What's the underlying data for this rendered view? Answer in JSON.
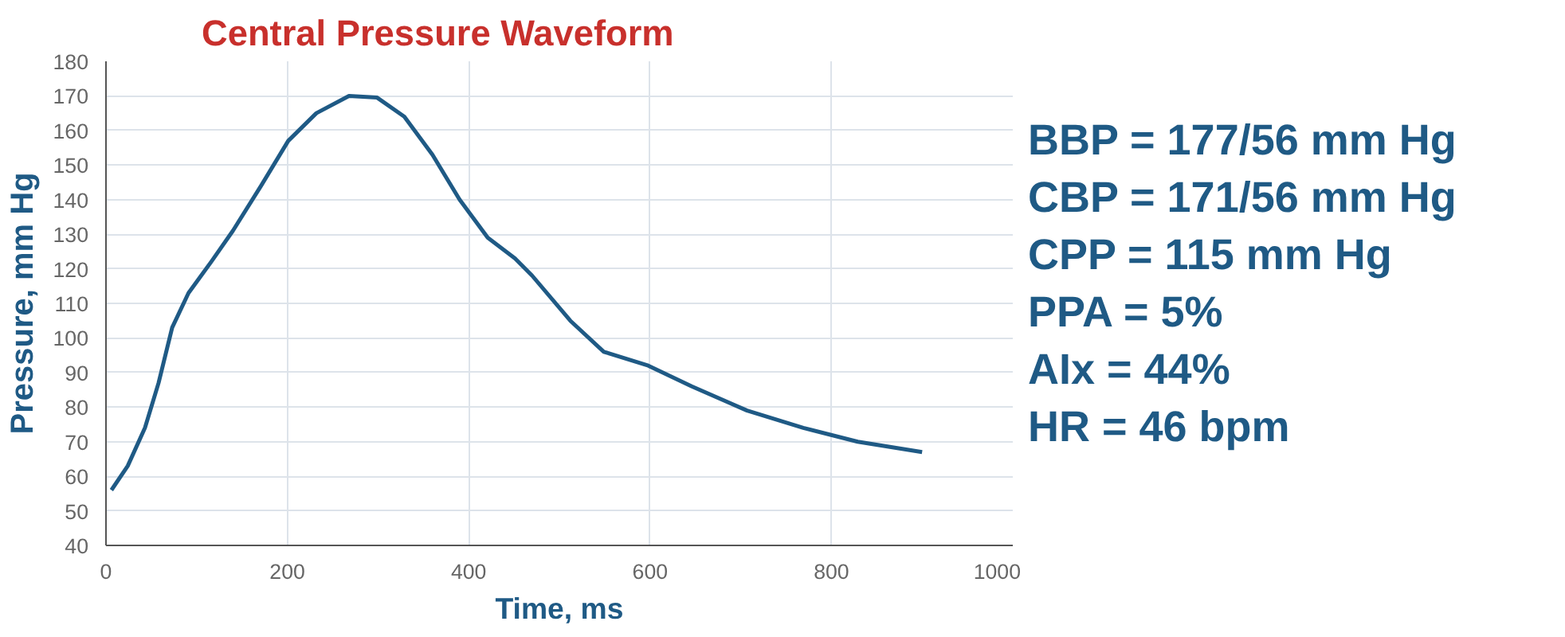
{
  "chart_data": {
    "type": "line",
    "title": "Central Pressure Waveform",
    "xlabel": "Time, ms",
    "ylabel": "Pressure, mm Hg",
    "xlim": [
      0,
      1000
    ],
    "xticks": [
      0,
      200,
      400,
      600,
      800,
      1000
    ],
    "ylim": [
      40,
      180
    ],
    "yticks": [
      40,
      50,
      60,
      70,
      80,
      90,
      100,
      110,
      120,
      130,
      140,
      150,
      160,
      170,
      180
    ],
    "grid": true,
    "series": [
      {
        "color": "#1f5a85",
        "x": [
          6,
          24,
          43,
          58,
          73,
          91,
          116,
          140,
          171,
          201,
          232,
          268,
          299,
          329,
          360,
          390,
          421,
          451,
          470,
          512,
          549,
          598,
          646,
          707,
          769,
          829,
          900
        ],
        "values": [
          56,
          63,
          74,
          87,
          103,
          113,
          122,
          131,
          144,
          157,
          165,
          170,
          169.5,
          164,
          153,
          140,
          129,
          123,
          118,
          105,
          96,
          92,
          86,
          79,
          74,
          70,
          67
        ]
      }
    ],
    "annotations": [
      "BBP = 177/56 mm Hg",
      "CBP = 171/56 mm Hg",
      "CPP = 115 mm Hg",
      "PPA = 5%",
      "AIx = 44%",
      "HR = 46 bpm"
    ]
  }
}
